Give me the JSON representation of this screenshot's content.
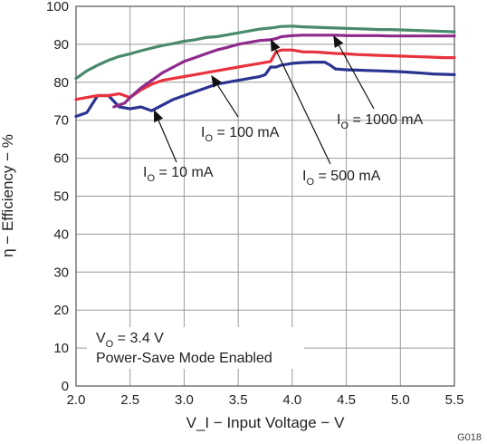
{
  "chart_data": {
    "type": "line",
    "title": "",
    "xlabel": "V_I − Input Voltage − V",
    "ylabel": "η − Efficiency − %",
    "xlim": [
      2.0,
      5.5
    ],
    "ylim": [
      0,
      100
    ],
    "x_ticks": [
      "2.0",
      "2.5",
      "3.0",
      "3.5",
      "4.0",
      "4.5",
      "5.0",
      "5.5"
    ],
    "y_ticks": [
      "0",
      "10",
      "20",
      "30",
      "40",
      "50",
      "60",
      "70",
      "80",
      "90",
      "100"
    ],
    "grid": true,
    "legend": "none (series identified by arrow annotations)",
    "series": [
      {
        "name": "I_O = 10 mA",
        "color": "#2b3490",
        "x": [
          2.0,
          2.1,
          2.2,
          2.3,
          2.4,
          2.5,
          2.6,
          2.7,
          2.8,
          2.9,
          3.0,
          3.1,
          3.2,
          3.3,
          3.4,
          3.5,
          3.6,
          3.7,
          3.75,
          3.8,
          3.85,
          3.9,
          4.0,
          4.1,
          4.2,
          4.3,
          4.35,
          4.4,
          4.5,
          4.6,
          4.7,
          4.8,
          4.9,
          5.0,
          5.1,
          5.2,
          5.3,
          5.4,
          5.5
        ],
        "values": [
          71,
          72,
          76.5,
          76.5,
          73.5,
          73,
          73.5,
          72.5,
          74,
          75.5,
          76.5,
          77.5,
          78.5,
          79.5,
          80,
          80.5,
          81,
          81.5,
          82,
          84,
          84,
          84.5,
          85,
          85.2,
          85.3,
          85.3,
          84.5,
          83.5,
          83.3,
          83.2,
          83.1,
          83,
          82.9,
          82.8,
          82.6,
          82.4,
          82.2,
          82.1,
          82
        ]
      },
      {
        "name": "I_O = 100 mA",
        "color": "#e8323c",
        "x": [
          2.0,
          2.1,
          2.2,
          2.3,
          2.4,
          2.5,
          2.6,
          2.7,
          2.8,
          2.9,
          3.0,
          3.1,
          3.2,
          3.3,
          3.4,
          3.5,
          3.6,
          3.7,
          3.8,
          3.85,
          3.9,
          4.0,
          4.1,
          4.2,
          4.3,
          4.4,
          4.5,
          4.6,
          4.7,
          4.8,
          4.9,
          5.0,
          5.1,
          5.2,
          5.3,
          5.4,
          5.5
        ],
        "values": [
          75.5,
          76,
          76.5,
          76.5,
          77,
          76,
          78,
          79.5,
          80.5,
          81,
          81.5,
          82,
          82.5,
          83,
          83.5,
          84,
          84.5,
          85,
          85.5,
          88,
          88.5,
          88.5,
          88,
          88,
          87.8,
          87.6,
          87.5,
          87.3,
          87.2,
          87.1,
          87,
          86.9,
          86.8,
          86.7,
          86.6,
          86.5,
          86.5
        ]
      },
      {
        "name": "I_O = 500 mA",
        "color": "#8e2a8c",
        "x": [
          2.35,
          2.45,
          2.5,
          2.6,
          2.7,
          2.8,
          2.9,
          3.0,
          3.1,
          3.2,
          3.3,
          3.4,
          3.5,
          3.6,
          3.7,
          3.8,
          3.85,
          3.9,
          4.0,
          4.1,
          4.2,
          4.3,
          4.4,
          4.5,
          4.6,
          4.7,
          4.8,
          4.9,
          5.0,
          5.1,
          5.2,
          5.3,
          5.4,
          5.5
        ],
        "values": [
          73.5,
          74.5,
          76,
          78.5,
          80.5,
          82.5,
          84,
          85.5,
          86.5,
          87.5,
          88.5,
          89.2,
          90,
          90.5,
          91,
          91.2,
          91.5,
          92,
          92.3,
          92.4,
          92.4,
          92.4,
          92.4,
          92.3,
          92.3,
          92.3,
          92.3,
          92.2,
          92.2,
          92.2,
          92.2,
          92.2,
          92.2,
          92.2
        ]
      },
      {
        "name": "I_O = 1000 mA",
        "color": "#4a8a6c",
        "x": [
          2.0,
          2.1,
          2.2,
          2.3,
          2.4,
          2.5,
          2.6,
          2.7,
          2.8,
          2.9,
          3.0,
          3.1,
          3.2,
          3.3,
          3.4,
          3.5,
          3.6,
          3.7,
          3.8,
          3.9,
          4.0,
          4.1,
          4.2,
          4.3,
          4.4,
          4.5,
          4.6,
          4.7,
          4.8,
          4.9,
          5.0,
          5.1,
          5.2,
          5.3,
          5.4,
          5.5
        ],
        "values": [
          81,
          83,
          84.5,
          85.8,
          86.8,
          87.5,
          88.3,
          89,
          89.7,
          90.2,
          90.8,
          91.2,
          91.8,
          92,
          92.5,
          93,
          93.5,
          94,
          94.3,
          94.7,
          94.8,
          94.6,
          94.5,
          94.4,
          94.3,
          94.2,
          94.1,
          94,
          93.9,
          93.9,
          93.8,
          93.7,
          93.6,
          93.5,
          93.4,
          93.3
        ]
      }
    ],
    "annotations": [
      {
        "id": "io10",
        "label_main": "I",
        "label_sub": "O",
        "label_rest": " = 10 mA",
        "arrow_tip": [
          2.72,
          72.8
        ]
      },
      {
        "id": "io100",
        "label_main": "I",
        "label_sub": "O",
        "label_rest": " = 100 mA",
        "arrow_tip": [
          3.25,
          81.9
        ]
      },
      {
        "id": "io500",
        "label_main": "I",
        "label_sub": "O",
        "label_rest": " = 500 mA",
        "arrow_tip": [
          3.8,
          91.4
        ]
      },
      {
        "id": "io1000",
        "label_main": "I",
        "label_sub": "O",
        "label_rest": " = 1000 mA",
        "arrow_tip": [
          4.38,
          92.4
        ]
      }
    ],
    "note": {
      "line1_main": "V",
      "line1_sub": "O",
      "line1_rest": " = 3.4 V",
      "line2": "Power-Save Mode Enabled"
    },
    "figure_code": "G018"
  }
}
